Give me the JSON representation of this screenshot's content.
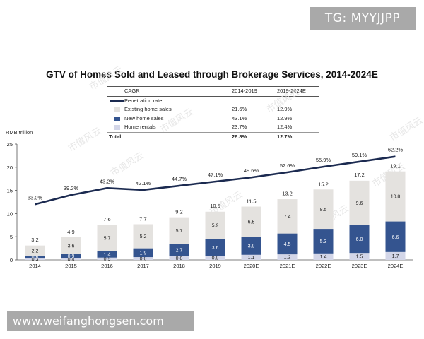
{
  "watermark": {
    "badge": "TG: MYYJJPP",
    "site": "www.weifanghongsen.com",
    "stamp": "市值风云"
  },
  "chart_data": {
    "type": "bar",
    "title": "GTV of Homes Sold and Leased through Brokerage Services, 2014-2024E",
    "ylabel": "RMB trillion",
    "ylim": [
      0,
      25
    ],
    "yticks": [
      0,
      5,
      10,
      15,
      20,
      25
    ],
    "categories": [
      "2014",
      "2015",
      "2016",
      "2017",
      "2018",
      "2019",
      "2020E",
      "2021E",
      "2022E",
      "2023E",
      "2024E"
    ],
    "series": [
      {
        "name": "Home rentals",
        "color": "#d3d6e8",
        "values": [
          0.3,
          0.4,
          0.5,
          0.6,
          0.8,
          0.9,
          1.1,
          1.2,
          1.4,
          1.5,
          1.7
        ],
        "labels": [
          "0.3",
          "0.4",
          "0.5",
          "0.6",
          "0.8",
          "0.9",
          "1.1",
          "1.2",
          "1.4",
          "1.5",
          "1.7"
        ]
      },
      {
        "name": "New home sales",
        "color": "#34548f",
        "values": [
          0.6,
          0.9,
          1.4,
          1.9,
          2.7,
          3.6,
          3.9,
          4.5,
          5.3,
          6.0,
          6.6
        ],
        "labels": [
          "0.6",
          "0.9",
          "1.4",
          "1.9",
          "2.7",
          "3.6",
          "3.9",
          "4.5",
          "5.3",
          "6.0",
          "6.6"
        ]
      },
      {
        "name": "Existing home sales",
        "color": "#e4e2df",
        "values": [
          2.2,
          3.6,
          5.7,
          5.2,
          5.7,
          5.9,
          6.5,
          7.4,
          8.5,
          9.6,
          10.8
        ],
        "labels": [
          "2.2",
          "3.6",
          "5.7",
          "5.2",
          "5.7",
          "5.9",
          "6.5",
          "7.4",
          "8.5",
          "9.6",
          "10.8"
        ]
      }
    ],
    "totals": [
      3.2,
      4.9,
      7.6,
      7.7,
      9.2,
      10.5,
      11.5,
      13.2,
      15.2,
      17.2,
      19.1
    ],
    "total_labels": [
      "3.2",
      "4.9",
      "7.6",
      "7.7",
      "9.2",
      "10.5",
      "11.5",
      "13.2",
      "15.2",
      "17.2",
      "19.1"
    ],
    "penetration": {
      "name": "Penetration rate",
      "color": "#1b2a50",
      "values": [
        33.0,
        39.2,
        43.2,
        42.1,
        44.7,
        47.1,
        49.6,
        52.6,
        55.9,
        59.1,
        62.2
      ],
      "labels": [
        "33.0%",
        "39.2%",
        "43.2%",
        "42.1%",
        "44.7%",
        "47.1%",
        "49.6%",
        "52.6%",
        "55.9%",
        "59.1%",
        "62.2%"
      ],
      "line_points": [
        12.0,
        14.0,
        15.5,
        15.1,
        16.0,
        16.9,
        17.8,
        18.9,
        20.1,
        21.2,
        22.3
      ]
    },
    "legend_table": {
      "header": {
        "label": "CAGR",
        "col1": "2014-2019",
        "col2": "2019-2024E"
      },
      "rows": [
        {
          "label": "Penetration rate",
          "col1": "",
          "col2": ""
        },
        {
          "label": "Existing home sales",
          "col1": "21.6%",
          "col2": "12.9%"
        },
        {
          "label": "New home sales",
          "col1": "43.1%",
          "col2": "12.9%"
        },
        {
          "label": "Home rentals",
          "col1": "23.7%",
          "col2": "12.4%"
        },
        {
          "label": "Total",
          "col1": "26.8%",
          "col2": "12.7%"
        }
      ]
    }
  }
}
